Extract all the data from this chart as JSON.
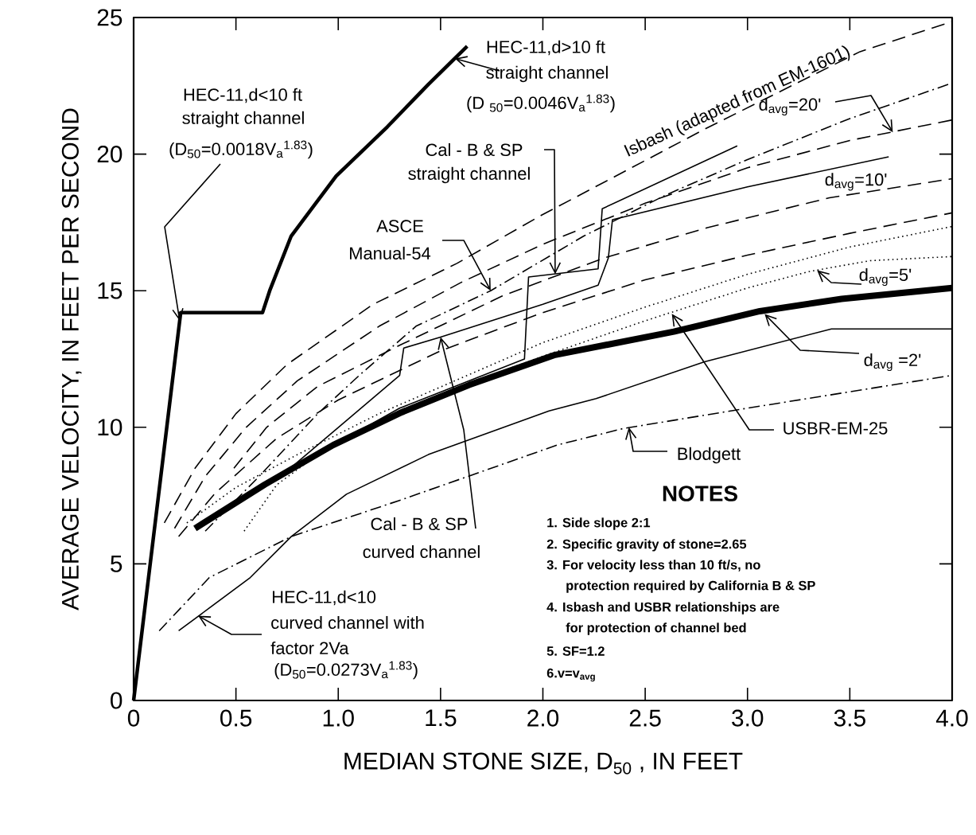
{
  "chart_data": {
    "type": "line",
    "xlabel": "MEDIAN STONE SIZE, D$_{50}$ , IN FEET",
    "ylabel": "AVERAGE VELOCITY, IN FEET PER SECOND",
    "xlim": [
      0,
      4
    ],
    "ylim": [
      0,
      25
    ],
    "xticks": [
      {
        "value": 0,
        "label": "0"
      },
      {
        "value": 0.5,
        "label": "0.5"
      },
      {
        "value": 1,
        "label": "1.0"
      },
      {
        "value": 1.5,
        "label": "1.5"
      },
      {
        "value": 2,
        "label": "2.0"
      },
      {
        "value": 2.5,
        "label": "2.5"
      },
      {
        "value": 3,
        "label": "3.0"
      },
      {
        "value": 3.5,
        "label": "3.5"
      },
      {
        "value": 4,
        "label": "4.0"
      }
    ],
    "yticks": [
      0,
      5,
      10,
      15,
      20,
      25
    ],
    "grid": false,
    "marker": "none",
    "series": [
      {
        "color": "#000000",
        "line_style": "solid",
        "x": [
          0,
          0.23,
          0.63,
          0.665,
          0.77,
          0.99,
          1.24,
          1.44,
          1.63
        ],
        "values": [
          0,
          14.2,
          14.2,
          15.0,
          17.0,
          19.2,
          21.0,
          22.55,
          23.95
        ]
      },
      {
        "color": "#000000",
        "line_style": "solid",
        "x": [
          0.3,
          0.64,
          0.975,
          1.31,
          1.64,
          2.06,
          2.64,
          3.06,
          3.46,
          4.0
        ],
        "values": [
          6.3,
          7.9,
          9.35,
          10.55,
          11.55,
          12.65,
          13.5,
          14.25,
          14.7,
          15.1
        ]
      },
      {
        "color": "#000000",
        "line_style": "solid",
        "x": [
          0.22,
          0.57,
          0.77,
          1.04,
          1.44,
          2.03,
          2.26,
          2.79,
          3.41,
          4.0
        ],
        "values": [
          2.55,
          4.5,
          6.0,
          7.55,
          9.0,
          10.6,
          11.05,
          12.4,
          13.6,
          13.6
        ]
      },
      {
        "color": "#000000",
        "line_style": "dashdot",
        "x": [
          0.125,
          0.37,
          0.77,
          1.31,
          2.07,
          2.39,
          3.0,
          4.0
        ],
        "values": [
          2.55,
          4.5,
          6.0,
          7.35,
          9.35,
          9.95,
          10.7,
          11.9
        ]
      },
      {
        "color": "#000000",
        "line_style": "dashed",
        "x": [
          0.15,
          0.3,
          0.5,
          0.75,
          1.17,
          1.58,
          1.99,
          2.8,
          3.55,
          4.0
        ],
        "values": [
          6.5,
          8.5,
          10.5,
          12.3,
          14.5,
          16.0,
          17.75,
          20.95,
          23.75,
          24.85
        ]
      },
      {
        "color": "#000000",
        "line_style": "dashed",
        "x": [
          0.2,
          0.35,
          0.55,
          0.8,
          1.2,
          1.6,
          2.0,
          2.5,
          3.0,
          3.5,
          4.0
        ],
        "values": [
          6.3,
          8.2,
          10.0,
          11.7,
          13.7,
          15.3,
          16.7,
          18.2,
          19.5,
          20.5,
          21.25
        ]
      },
      {
        "color": "#000000",
        "line_style": "dashed",
        "x": [
          0.49,
          0.65,
          0.9,
          1.3,
          1.8,
          2.3,
          2.8,
          3.4,
          4.0
        ],
        "values": [
          8.5,
          10.0,
          11.5,
          13.0,
          14.8,
          16.2,
          17.3,
          18.4,
          19.1
        ]
      },
      {
        "color": "#000000",
        "line_style": "dashed",
        "x": [
          0.22,
          0.4,
          0.7,
          1.0,
          1.5,
          2.0,
          2.5,
          3.0,
          3.5,
          4.0
        ],
        "values": [
          6.0,
          7.6,
          9.6,
          11.0,
          12.8,
          14.2,
          15.4,
          16.3,
          17.1,
          17.85
        ]
      },
      {
        "color": "#000000",
        "line_style": "dotted",
        "x": [
          0.26,
          0.5,
          0.8,
          1.2,
          1.6,
          2.0,
          2.5,
          3.0,
          3.5,
          4.0
        ],
        "values": [
          6.5,
          7.8,
          9.0,
          10.5,
          11.8,
          13.1,
          14.4,
          15.6,
          16.6,
          17.35
        ]
      },
      {
        "color": "#000000",
        "line_style": "dotted",
        "x": [
          0.54,
          0.7,
          0.9,
          1.2,
          1.6,
          2.0,
          2.5,
          3.0,
          3.3,
          3.6,
          4.0
        ],
        "values": [
          6.2,
          7.9,
          9.0,
          10.2,
          11.5,
          12.6,
          13.9,
          15.1,
          15.7,
          16.1,
          16.25
        ]
      },
      {
        "color": "#000000",
        "line_style": "dashdot",
        "x": [
          0.35,
          0.6,
          0.9,
          1.11,
          1.38,
          1.745,
          2.2,
          2.6,
          3.0,
          3.5,
          4.0
        ],
        "values": [
          6.2,
          8.1,
          10.5,
          11.95,
          13.7,
          15.0,
          17.0,
          18.5,
          19.8,
          21.3,
          22.6
        ]
      },
      {
        "color": "#000000",
        "line_style": "solid",
        "x": [
          0.8,
          1.3,
          1.91,
          1.93,
          2.27,
          2.29,
          2.95
        ],
        "values": [
          8.6,
          10.7,
          12.5,
          15.5,
          15.8,
          18.0,
          20.3
        ]
      },
      {
        "color": "#000000",
        "line_style": "solid",
        "x": [
          0.75,
          1.3,
          1.32,
          1.5,
          2.0,
          2.27,
          2.32,
          2.34,
          3.0,
          3.69
        ],
        "values": [
          8.4,
          11.9,
          12.9,
          13.3,
          14.5,
          15.2,
          16.2,
          17.6,
          18.8,
          19.9
        ]
      }
    ],
    "annotations": [
      "HEC-11,d<10 ft",
      "straight channel",
      {
        "text": "(D$_{50}$=0.0018V$_{a}$$^{1.83}$)",
        "x": 0.225,
        "y": 13.9
      },
      "HEC-11,d>10 ft",
      {
        "text": "straight channel",
        "x": 1.57,
        "y": 23.5
      },
      "(D $_{50}$=0.0046V$_{a}$$^{1.83}$)",
      {
        "text": "Cal - B & SP",
        "x": 2.06,
        "y": 15.6
      },
      "straight channel",
      {
        "text": "ASCE",
        "x": 1.745,
        "y": 15.0
      },
      "Manual-54",
      {
        "text": "Isbash (adapted from EM-1601)",
        "x": 2.97,
        "y": 21.6
      },
      {
        "text": "d$_{avg}$=20'",
        "x": 3.71,
        "y": 20.8
      },
      {
        "text": "d$_{avg}$=10'",
        "x": 3.53,
        "y": 18.6
      },
      {
        "text": "d$_{avg}$=5'",
        "x": 3.34,
        "y": 15.75
      },
      {
        "text": "d$_{avg}$ =2'",
        "x": 3.07,
        "y": 14.25
      },
      {
        "text": "USBR-EM-25",
        "x": 2.63,
        "y": 14.15
      },
      {
        "text": "Blodgett",
        "x": 2.42,
        "y": 10.0
      },
      {
        "text": "Cal - B & SP",
        "x": 1.5,
        "y": 13.3
      },
      "curved channel",
      "HEC-11,d<10",
      {
        "text": "curved channel with",
        "x": 0.315,
        "y": 3.1
      },
      "factor 2Va",
      "(D$_{50}$=0.0273V$_{a}$$^{1.83}$)",
      "NOTES",
      "1. Side slope 2:1",
      "2. Specific gravity of stone=2.65",
      "3. For velocity less than 10 ft/s, no",
      "protection required by California B & SP",
      "4. Isbash and USBR relationships are",
      "for protection of channel bed",
      "5. SF=1.2",
      "6.v=v$_{avg}$"
    ]
  }
}
